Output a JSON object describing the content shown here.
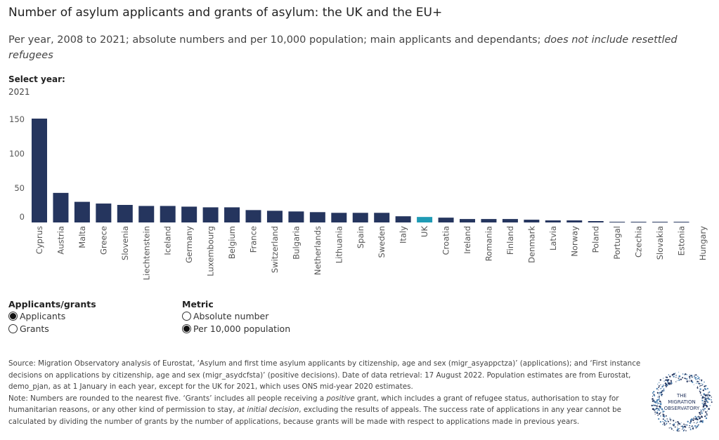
{
  "title": "Number of asylum applicants and grants of asylum: the UK and the EU+",
  "subtitle_main": "Per year, 2008 to 2021; absolute numbers and per 10,000 population; main applicants and dependants; ",
  "subtitle_italic": "does not include resettled refugees",
  "year_filter": {
    "label": "Select year:",
    "value": "2021"
  },
  "chart_data": {
    "type": "bar",
    "categories": [
      "Cyprus",
      "Austria",
      "Malta",
      "Greece",
      "Slovenia",
      "Liechtenstein",
      "Iceland",
      "Germany",
      "Luxembourg",
      "Belgium",
      "France",
      "Switzerland",
      "Bulgaria",
      "Netherlands",
      "Lithuania",
      "Spain",
      "Sweden",
      "Italy",
      "UK",
      "Croatia",
      "Ireland",
      "Romania",
      "Finland",
      "Denmark",
      "Latvia",
      "Norway",
      "Poland",
      "Portugal",
      "Czechia",
      "Slovakia",
      "Estonia",
      "Hungary"
    ],
    "values": [
      151,
      43,
      30,
      27.5,
      25.5,
      24,
      24,
      23,
      22,
      22,
      18,
      17,
      16,
      15,
      14,
      14,
      14,
      9,
      8,
      7,
      5,
      5,
      5,
      4,
      3,
      3,
      2,
      1,
      1,
      1,
      1,
      0
    ],
    "yticks": [
      0,
      50,
      100,
      150
    ],
    "ylim": [
      0,
      155
    ],
    "highlight": "UK",
    "colors": {
      "bar": "#25355e",
      "highlight": "#1f9bb5"
    },
    "grid": false
  },
  "legend_type": {
    "title": "Applicants/grants",
    "options": [
      {
        "label": "Applicants",
        "selected": true
      },
      {
        "label": "Grants",
        "selected": false
      }
    ]
  },
  "legend_metric": {
    "title": "Metric",
    "options": [
      {
        "label": "Absolute number",
        "selected": false
      },
      {
        "label": "Per 10,000 population",
        "selected": true
      }
    ]
  },
  "notes": {
    "source": "Source: Migration Observatory analysis of Eurostat, ‘Asylum and first time asylum applicants by citizenship, age and sex (migr_asyappctza)’ (applications); and ‘First instance decisions on applications by citizenship, age and sex (migr_asydcfsta)’ (positive decisions). Date of data retrieval: 17 August 2022. Population estimates are from Eurostat, demo_pjan, as at 1 January in each year, except for the UK for 2021, which uses ONS mid-year 2020 estimates.",
    "note_a": "Note: Numbers are rounded to the nearest five. ‘Grants’ includes all people receiving a ",
    "note_i1": "positive",
    "note_b": " grant, which includes a grant of refugee status, authorisation to stay for humanitarian reasons, or any other kind of permission to stay, ",
    "note_i2": "at initial decision",
    "note_c": ", excluding the results of appeals. The success rate of applications in any year cannot be calculated by dividing the number of grants by the number of applications, because grants will be made with respect to applications made in previous years."
  },
  "logo": {
    "text": [
      "THE",
      "MIGRATION",
      "OBSERVATORY"
    ]
  }
}
